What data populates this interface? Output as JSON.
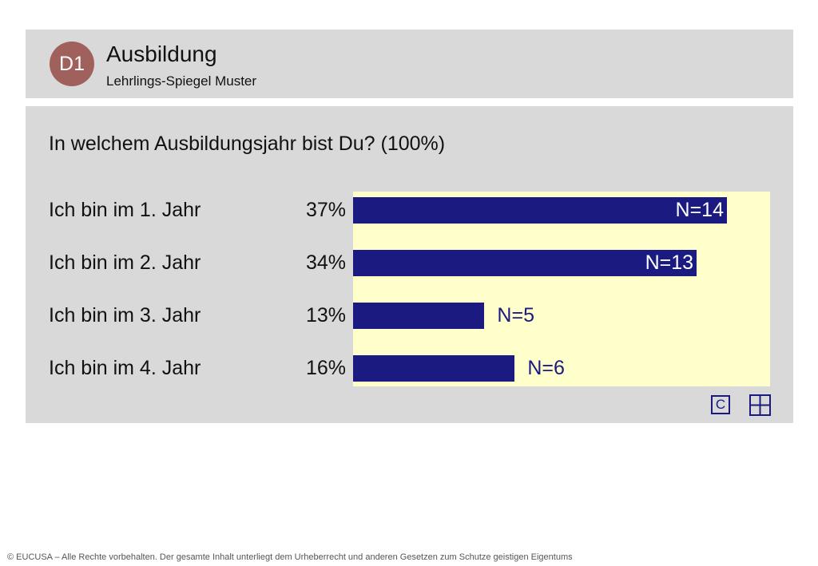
{
  "header": {
    "badge": "D1",
    "title": "Ausbildung",
    "subtitle": "Lehrlings-Spiegel Muster"
  },
  "question": "In welchem Ausbildungsjahr bist Du? (100%)",
  "rows": [
    {
      "label": "Ich bin im 1. Jahr",
      "pct": "37%",
      "n": "N=14"
    },
    {
      "label": "Ich bin im 2. Jahr",
      "pct": "34%",
      "n": "N=13"
    },
    {
      "label": "Ich bin im 3. Jahr",
      "pct": "13%",
      "n": "N=5"
    },
    {
      "label": "Ich bin im 4. Jahr",
      "pct": "16%",
      "n": "N=6"
    }
  ],
  "chart_data": {
    "type": "bar",
    "orientation": "horizontal",
    "categories": [
      "Ich bin im 1. Jahr",
      "Ich bin im 2. Jahr",
      "Ich bin im 3. Jahr",
      "Ich bin im 4. Jahr"
    ],
    "values": [
      37,
      34,
      13,
      16
    ],
    "counts": [
      14,
      13,
      5,
      6
    ],
    "unit": "%",
    "xlim": [
      0,
      40
    ],
    "title": "In welchem Ausbildungsjahr bist Du? (100%)"
  },
  "icons": {
    "c_label": "C",
    "c_icon": "c-icon",
    "grid_icon": "grid-icon"
  },
  "colors": {
    "bar": "#1a1a80",
    "chart_bg": "#ffffcc",
    "panel": "#d9d9d9",
    "badge": "#a0615c"
  },
  "footer": "© EUCUSA – Alle Rechte vorbehalten. Der gesamte Inhalt unterliegt dem Urheberrecht und anderen Gesetzen zum Schutze geistigen Eigentums"
}
